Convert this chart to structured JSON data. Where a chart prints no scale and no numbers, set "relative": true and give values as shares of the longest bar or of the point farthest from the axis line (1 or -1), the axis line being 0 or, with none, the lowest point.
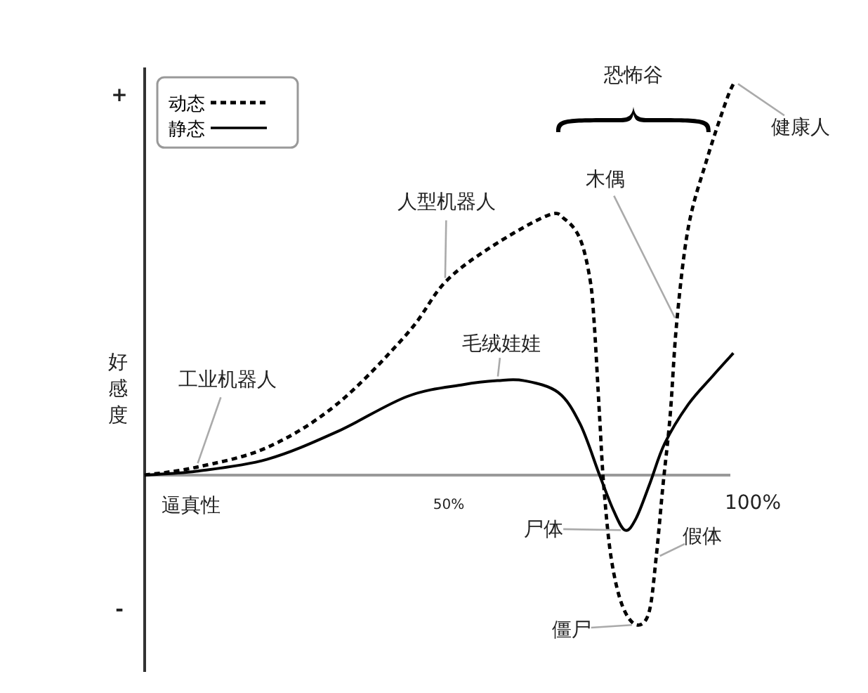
{
  "chart_data": {
    "type": "line",
    "relative": true,
    "xlabel": "逼真性",
    "ylabel": "好感度",
    "xlim": [
      0,
      100
    ],
    "xticks": [
      {
        "value": 50,
        "label": "50%"
      },
      {
        "value": 100,
        "label": "100%"
      }
    ],
    "legend": "top left",
    "marker": "none",
    "grid": false,
    "series": [
      {
        "name": "动态",
        "color": "#000000",
        "line_style": "dashed",
        "x": [
          0,
          8.5,
          20.1,
          31.6,
          43.2,
          49.4,
          57.0,
          66.3,
          69.1,
          71.6,
          73.2,
          73.9,
          74.8,
          75.5,
          76.7,
          78.5,
          80.8,
          82.9,
          84.1,
          85.2,
          86.4,
          87.5,
          89.4,
          92.4,
          95.6,
          97.0
        ],
        "values": [
          0,
          0.02,
          0.07,
          0.18,
          0.36,
          0.49,
          0.58,
          0.66,
          0.65,
          0.6,
          0.5,
          0.39,
          0.15,
          -0.03,
          -0.21,
          -0.33,
          -0.38,
          -0.35,
          -0.21,
          -0.03,
          0.15,
          0.39,
          0.63,
          0.8,
          0.95,
          1
        ]
      },
      {
        "name": "静态",
        "color": "#000000",
        "line_style": "solid",
        "x": [
          0,
          8.5,
          20.1,
          31.6,
          43.2,
          52.4,
          58.0,
          62.4,
          68.0,
          71.6,
          74.8,
          77.1,
          79.0,
          80.8,
          83.1,
          85.5,
          89.4,
          93.3,
          96.8
        ],
        "values": [
          0,
          0.01,
          0.04,
          0.11,
          0.2,
          0.23,
          0.24,
          0.24,
          0.21,
          0.13,
          0,
          -0.09,
          -0.14,
          -0.11,
          -0.02,
          0.08,
          0.18,
          0.25,
          0.31
        ]
      }
    ],
    "annotations": [
      {
        "text": "工业机器人",
        "x": 8.5,
        "y": 0.02
      },
      {
        "text": "人型机器人",
        "x": 49.4,
        "y": 0.49
      },
      {
        "text": "毛绒娃娃",
        "x": 58.0,
        "y": 0.24
      },
      {
        "text": "木偶",
        "x": 87.5,
        "y": 0.39
      },
      {
        "text": "健康人",
        "x": 97.0,
        "y": 1
      },
      {
        "text": "尸体",
        "x": 79.0,
        "y": -0.14
      },
      {
        "text": "僵尸",
        "x": 80.8,
        "y": -0.38
      },
      {
        "text": "假体",
        "x": 84.1,
        "y": -0.21
      },
      "恐怖谷",
      "+",
      "-"
    ]
  }
}
